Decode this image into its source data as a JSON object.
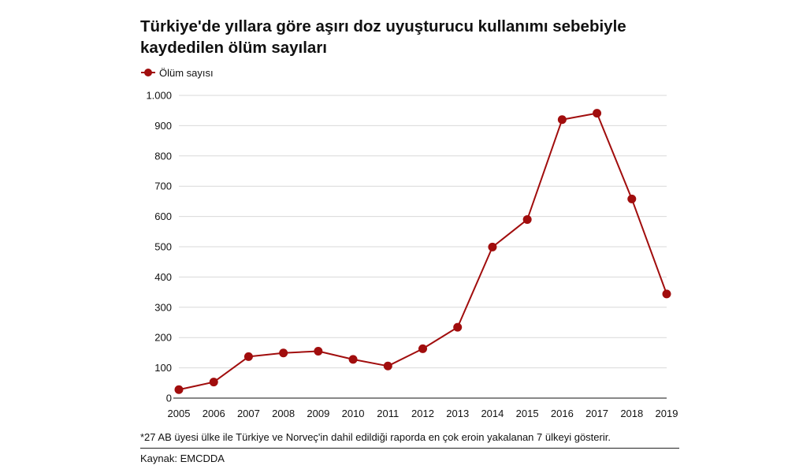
{
  "chart_data": {
    "type": "line",
    "title": "Türkiye'de yıllara göre aşırı doz uyuşturucu kullanımı sebebiyle kaydedilen ölüm sayıları",
    "x": [
      "2005",
      "2006",
      "2007",
      "2008",
      "2009",
      "2010",
      "2011",
      "2012",
      "2013",
      "2014",
      "2015",
      "2016",
      "2017",
      "2018",
      "2019"
    ],
    "series": [
      {
        "name": "Ölüm sayısı",
        "color": "#a10d0d",
        "values": [
          28,
          53,
          137,
          149,
          155,
          128,
          106,
          163,
          234,
          499,
          590,
          920,
          941,
          658,
          344
        ]
      }
    ],
    "ylim": [
      0,
      1000
    ],
    "yticks": [
      0,
      100,
      200,
      300,
      400,
      500,
      600,
      700,
      800,
      900,
      1000
    ],
    "ytick_labels": [
      "0",
      "100",
      "200",
      "300",
      "400",
      "500",
      "600",
      "700",
      "800",
      "900",
      "1.000"
    ],
    "grid": true,
    "legend_position": "top-left",
    "xlabel": "",
    "ylabel": ""
  },
  "footnote": "*27 AB üyesi ülke ile Türkiye ve Norveç'in dahil edildiği raporda en çok eroin yakalanan 7 ülkeyi gösterir.",
  "source": "Kaynak: EMCDDA",
  "colors": {
    "series": "#a10d0d",
    "grid": "#d9d9d9",
    "axis": "#111111"
  }
}
